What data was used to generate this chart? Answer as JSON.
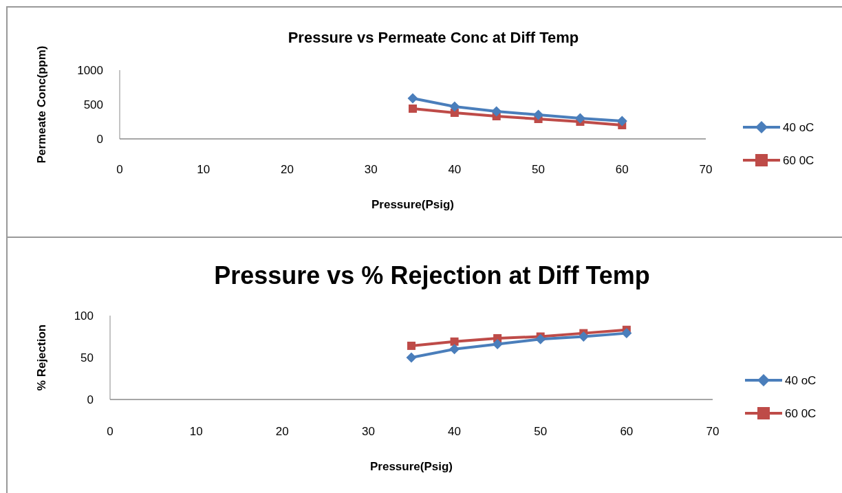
{
  "chart_data": [
    {
      "type": "line",
      "title": "Pressure vs Permeate Conc at Diff Temp",
      "xlabel": "Pressure(Psig)",
      "ylabel": "Permeate Conc(ppm)",
      "x": [
        35,
        40,
        45,
        50,
        55,
        60
      ],
      "xlim": [
        0,
        70
      ],
      "xticks": [
        0,
        10,
        20,
        30,
        40,
        50,
        60,
        70
      ],
      "ylim": [
        0,
        1000
      ],
      "yticks": [
        0,
        500,
        1000
      ],
      "grid": false,
      "legend": "right",
      "series": [
        {
          "name": "40 oC",
          "color": "#4a7ebb",
          "marker": "diamond",
          "values": [
            590,
            470,
            400,
            350,
            300,
            260
          ]
        },
        {
          "name": "60 0C",
          "color": "#be4b48",
          "marker": "square",
          "values": [
            440,
            380,
            330,
            290,
            250,
            200
          ]
        }
      ]
    },
    {
      "type": "line",
      "title": "Pressure vs % Rejection at Diff Temp",
      "xlabel": "Pressure(Psig)",
      "ylabel": "% Rejection",
      "x": [
        35,
        40,
        45,
        50,
        55,
        60
      ],
      "xlim": [
        0,
        70
      ],
      "xticks": [
        0,
        10,
        20,
        30,
        40,
        50,
        60,
        70
      ],
      "ylim": [
        0,
        100
      ],
      "yticks": [
        0,
        50,
        100
      ],
      "grid": false,
      "legend": "right",
      "series": [
        {
          "name": "40 oC",
          "color": "#4a7ebb",
          "marker": "diamond",
          "values": [
            50,
            60,
            66,
            72,
            75,
            79
          ]
        },
        {
          "name": "60 0C",
          "color": "#be4b48",
          "marker": "square",
          "values": [
            64,
            69,
            73,
            75,
            79,
            83
          ]
        }
      ]
    }
  ]
}
